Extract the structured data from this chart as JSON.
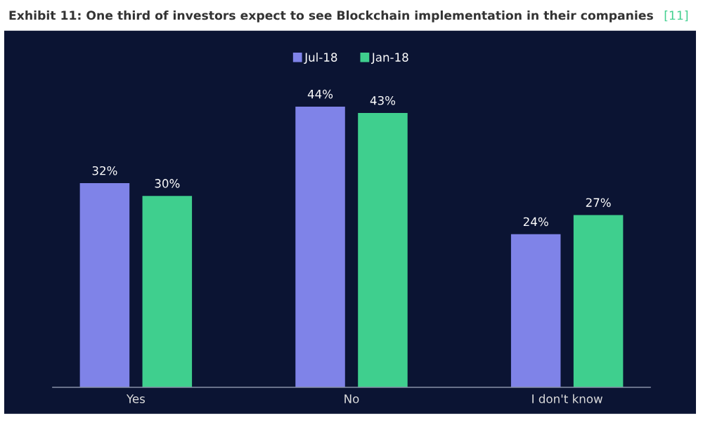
{
  "chart_data": {
    "type": "bar",
    "title": "Exhibit 11: One third of investors expect to see Blockchain implementation in their companies",
    "annotations": [
      "[11]"
    ],
    "categories": [
      "Yes",
      "No",
      "I don't know"
    ],
    "series": [
      {
        "name": "Jul-18",
        "color": "#7f83e8",
        "values": [
          32,
          44,
          24
        ],
        "value_labels": [
          "32%",
          "44%",
          "24%"
        ]
      },
      {
        "name": "Jan-18",
        "color": "#3fcf8e",
        "values": [
          30,
          43,
          27
        ],
        "value_labels": [
          "30%",
          "43%",
          "27%"
        ]
      }
    ],
    "legend": "top",
    "grid": false
  }
}
